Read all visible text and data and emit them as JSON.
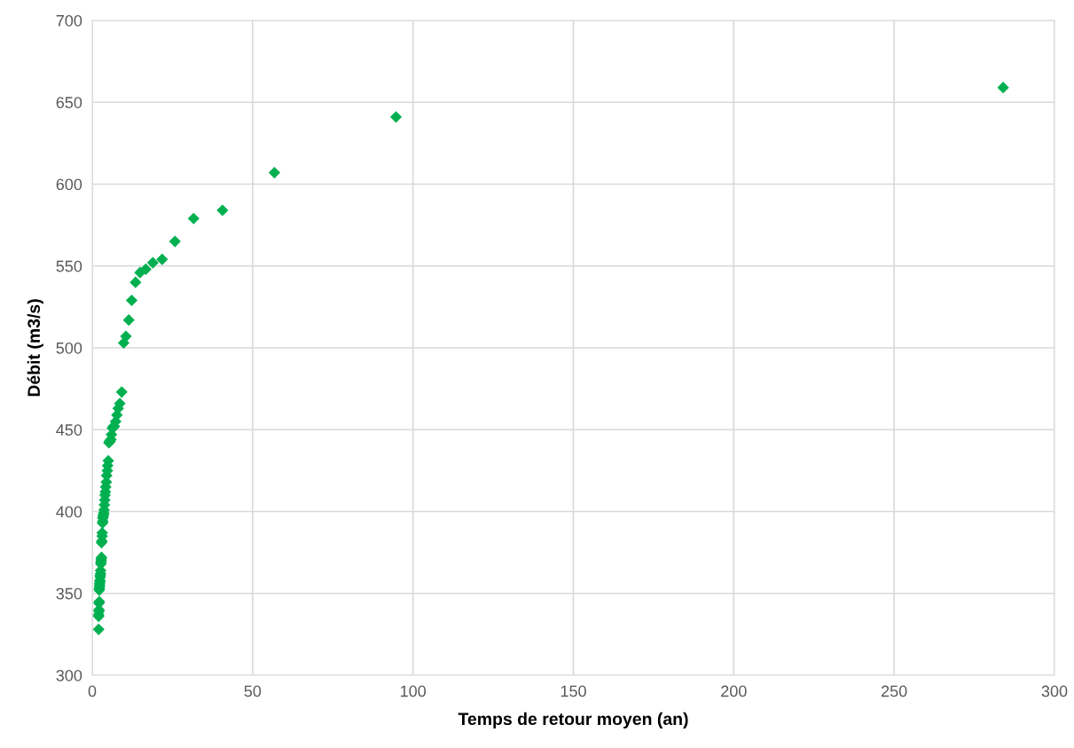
{
  "chart_data": {
    "type": "scatter",
    "xlabel": "Temps de retour moyen (an)",
    "ylabel": "Débit (m3/s)",
    "xlim": [
      0,
      300
    ],
    "xticks": [
      0,
      50,
      100,
      150,
      200,
      250,
      300
    ],
    "ylim": [
      300,
      700
    ],
    "yticks": [
      300,
      350,
      400,
      450,
      500,
      550,
      600,
      650,
      700
    ],
    "grid": true,
    "marker": "diamond",
    "series": [
      {
        "color": "#00b050",
        "x": [
          284,
          94.7,
          56.8,
          40.6,
          31.6,
          25.8,
          21.8,
          18.9,
          16.7,
          14.9,
          13.5,
          12.3,
          11.4,
          10.5,
          9.8,
          9.2,
          8.6,
          8.1,
          7.7,
          7.3,
          6.9,
          6.6,
          6.3,
          6.0,
          5.8,
          5.6,
          5.4,
          5.2,
          5.0,
          4.8,
          4.7,
          4.5,
          4.4,
          4.2,
          4.1,
          4.0,
          3.9,
          3.8,
          3.7,
          3.6,
          3.5,
          3.4,
          3.3,
          3.3,
          3.2,
          3.1,
          3.1,
          3.0,
          2.9,
          2.9,
          2.8,
          2.8,
          2.7,
          2.7,
          2.6,
          2.6,
          2.5,
          2.5,
          2.4,
          2.4,
          2.3,
          2.3,
          2.3,
          2.2,
          2.2,
          2.2,
          2.1,
          2.1,
          2.1,
          2.0,
          2.0,
          2.0
        ],
        "values": [
          659,
          641,
          607,
          584,
          579,
          565,
          554,
          552,
          548,
          546,
          540,
          529,
          517,
          507,
          503,
          473,
          466,
          463,
          459,
          455,
          452,
          452,
          451,
          447,
          444,
          443,
          443,
          442,
          431,
          428,
          425,
          422,
          418,
          415,
          412,
          410,
          407,
          404,
          401,
          399,
          398,
          397,
          396,
          394,
          393,
          387,
          385,
          382,
          381,
          372,
          371,
          370,
          369,
          368,
          364,
          362,
          361,
          360,
          358,
          357,
          356,
          355,
          354,
          353,
          352,
          345,
          344,
          340,
          339,
          337,
          336,
          328
        ]
      }
    ]
  }
}
